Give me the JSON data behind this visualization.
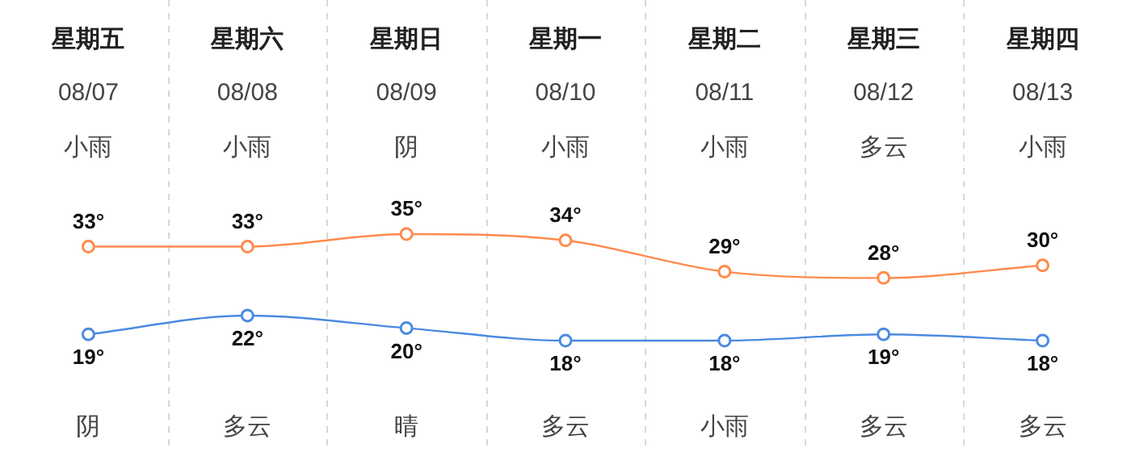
{
  "chart_data": {
    "type": "line",
    "categories": [
      "星期五\n08/07\n小雨",
      "星期六\n08/08\n小雨",
      "星期日\n08/09\n阴",
      "星期一\n08/10\n小雨",
      "星期二\n08/11\n小雨",
      "星期三\n08/12\n多云",
      "星期四\n08/13\n小雨"
    ],
    "series": [
      {
        "color": "#ff8a4c",
        "values": [
          33,
          33,
          35,
          34,
          29,
          28,
          30
        ],
        "value_labels": [
          "33°",
          "33°",
          "35°",
          "34°",
          "29°",
          "28°",
          "30°"
        ]
      },
      {
        "color": "#4a8ae0",
        "values": [
          19,
          22,
          20,
          18,
          18,
          19,
          18
        ],
        "value_labels": [
          "19°",
          "22°",
          "20°",
          "18°",
          "18°",
          "19°",
          "18°"
        ]
      }
    ],
    "annotations": [
      "阴",
      "多云",
      "晴",
      "多云",
      "小雨",
      "多云",
      "多云"
    ],
    "grid": "x",
    "legend": false,
    "marker": "circle",
    "tick_labels": "x"
  }
}
